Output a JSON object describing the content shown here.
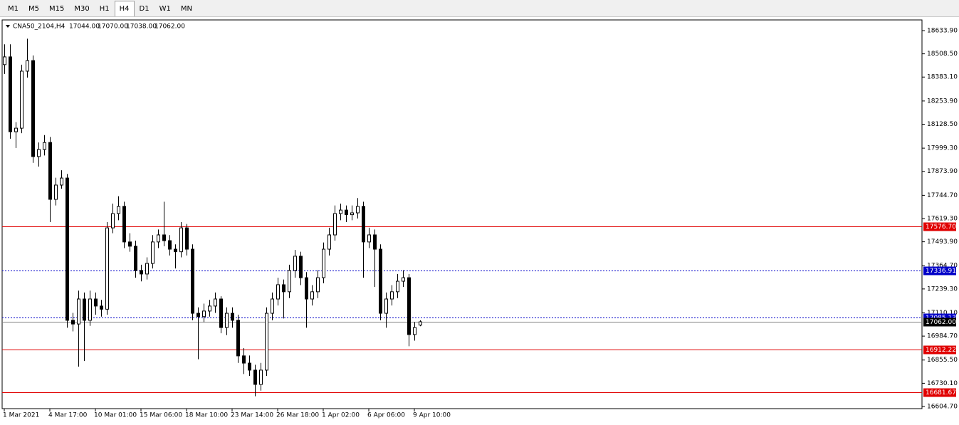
{
  "toolbar": {
    "tabs": [
      "M1",
      "M5",
      "M15",
      "M30",
      "H1",
      "H4",
      "D1",
      "W1",
      "MN"
    ],
    "active": "H4"
  },
  "chart_data": {
    "type": "candlestick",
    "symbol": "CNA50_2104,H4",
    "header_ohlc": [
      "17044.00",
      "17070.00",
      "17038.00",
      "17062.00"
    ],
    "ylim": [
      16593.2,
      18691.5
    ],
    "yticks": [
      {
        "value": 18633.9,
        "label": "18633.90"
      },
      {
        "value": 18508.5,
        "label": "18508.50"
      },
      {
        "value": 18383.1,
        "label": "18383.10"
      },
      {
        "value": 18253.9,
        "label": "18253.90"
      },
      {
        "value": 18128.5,
        "label": "18128.50"
      },
      {
        "value": 17999.3,
        "label": "17999.30"
      },
      {
        "value": 17873.9,
        "label": "17873.90"
      },
      {
        "value": 17744.7,
        "label": "17744.70"
      },
      {
        "value": 17619.3,
        "label": "17619.30"
      },
      {
        "value": 17493.9,
        "label": "17493.90"
      },
      {
        "value": 17364.7,
        "label": "17364.70"
      },
      {
        "value": 17239.3,
        "label": "17239.30"
      },
      {
        "value": 17110.1,
        "label": "17110.10"
      },
      {
        "value": 16984.7,
        "label": "16984.70"
      },
      {
        "value": 16855.5,
        "label": "16855.50"
      },
      {
        "value": 16730.1,
        "label": "16730.10"
      },
      {
        "value": 16604.7,
        "label": "16604.70"
      }
    ],
    "categories": [
      "1 Mar 2021",
      null,
      null,
      null,
      null,
      null,
      null,
      null,
      "4 Mar 17:00",
      null,
      null,
      null,
      null,
      null,
      null,
      null,
      "10 Mar 01:00",
      null,
      null,
      null,
      null,
      null,
      null,
      null,
      "15 Mar 06:00",
      null,
      null,
      null,
      null,
      null,
      null,
      null,
      "18 Mar 10:00",
      null,
      null,
      null,
      null,
      null,
      null,
      null,
      "23 Mar 14:00",
      null,
      null,
      null,
      null,
      null,
      null,
      null,
      "26 Mar 18:00",
      null,
      null,
      null,
      null,
      null,
      null,
      null,
      "1 Apr 02:00",
      null,
      null,
      null,
      null,
      null,
      null,
      null,
      "6 Apr 06:00",
      null,
      null,
      null,
      null,
      null,
      null,
      null,
      "9 Apr 10:00",
      null
    ],
    "ohlc": [
      [
        18450,
        18560,
        18400,
        18492
      ],
      [
        18492,
        18560,
        18050,
        18088
      ],
      [
        18088,
        18140,
        18000,
        18107
      ],
      [
        18107,
        18450,
        18080,
        18415
      ],
      [
        18415,
        18590,
        18380,
        18472
      ],
      [
        18472,
        18500,
        17920,
        17954
      ],
      [
        17954,
        18030,
        17900,
        17992
      ],
      [
        17992,
        18070,
        17960,
        18030
      ],
      [
        18030,
        18060,
        17600,
        17723
      ],
      [
        17723,
        17840,
        17690,
        17800
      ],
      [
        17800,
        17880,
        17780,
        17838
      ],
      [
        17838,
        17860,
        17030,
        17070
      ],
      [
        17070,
        17110,
        17010,
        17050
      ],
      [
        17050,
        17230,
        16820,
        17185
      ],
      [
        17185,
        17220,
        16850,
        17070
      ],
      [
        17070,
        17230,
        17040,
        17185
      ],
      [
        17185,
        17220,
        17100,
        17147
      ],
      [
        17147,
        17180,
        17090,
        17130
      ],
      [
        17130,
        17600,
        17100,
        17569
      ],
      [
        17569,
        17700,
        17540,
        17646
      ],
      [
        17646,
        17740,
        17610,
        17685
      ],
      [
        17685,
        17710,
        17460,
        17493
      ],
      [
        17493,
        17540,
        17440,
        17470
      ],
      [
        17470,
        17500,
        17300,
        17339
      ],
      [
        17339,
        17370,
        17280,
        17320
      ],
      [
        17320,
        17410,
        17290,
        17377
      ],
      [
        17377,
        17530,
        17350,
        17493
      ],
      [
        17493,
        17560,
        17460,
        17531
      ],
      [
        17531,
        17710,
        17470,
        17500
      ],
      [
        17500,
        17530,
        17420,
        17454
      ],
      [
        17454,
        17480,
        17350,
        17440
      ],
      [
        17440,
        17600,
        17410,
        17569
      ],
      [
        17569,
        17590,
        17420,
        17454
      ],
      [
        17454,
        17480,
        17070,
        17108
      ],
      [
        17108,
        17140,
        16860,
        17090
      ],
      [
        17090,
        17160,
        17060,
        17120
      ],
      [
        17120,
        17180,
        17090,
        17147
      ],
      [
        17147,
        17220,
        17110,
        17185
      ],
      [
        17185,
        17200,
        17000,
        17031
      ],
      [
        17031,
        17140,
        16990,
        17108
      ],
      [
        17108,
        17140,
        17030,
        17070
      ],
      [
        17070,
        17100,
        16840,
        16878
      ],
      [
        16878,
        16920,
        16780,
        16839
      ],
      [
        16839,
        16880,
        16770,
        16801
      ],
      [
        16801,
        16830,
        16660,
        16724
      ],
      [
        16724,
        16840,
        16690,
        16801
      ],
      [
        16801,
        17140,
        16770,
        17108
      ],
      [
        17108,
        17220,
        17070,
        17185
      ],
      [
        17185,
        17300,
        17150,
        17262
      ],
      [
        17262,
        17290,
        17080,
        17224
      ],
      [
        17224,
        17370,
        17190,
        17339
      ],
      [
        17339,
        17450,
        17300,
        17416
      ],
      [
        17416,
        17440,
        17260,
        17300
      ],
      [
        17300,
        17330,
        17030,
        17185
      ],
      [
        17185,
        17260,
        17150,
        17224
      ],
      [
        17224,
        17340,
        17190,
        17300
      ],
      [
        17300,
        17490,
        17270,
        17454
      ],
      [
        17454,
        17570,
        17420,
        17531
      ],
      [
        17531,
        17690,
        17500,
        17646
      ],
      [
        17646,
        17700,
        17610,
        17665
      ],
      [
        17665,
        17690,
        17600,
        17640
      ],
      [
        17640,
        17690,
        17610,
        17650
      ],
      [
        17650,
        17730,
        17620,
        17685
      ],
      [
        17685,
        17710,
        17300,
        17493
      ],
      [
        17493,
        17570,
        17460,
        17531
      ],
      [
        17531,
        17560,
        17250,
        17454
      ],
      [
        17454,
        17480,
        17070,
        17108
      ],
      [
        17108,
        17220,
        17030,
        17185
      ],
      [
        17185,
        17260,
        17150,
        17224
      ],
      [
        17224,
        17320,
        17190,
        17281
      ],
      [
        17281,
        17340,
        17250,
        17300
      ],
      [
        17300,
        17320,
        16930,
        16993
      ],
      [
        16993,
        17060,
        16960,
        17031
      ],
      [
        17044,
        17070,
        17038,
        17062
      ]
    ],
    "levels": [
      {
        "value": 17576.7,
        "label": "17576.70",
        "color": "#e00000",
        "style": "solid"
      },
      {
        "value": 17336.91,
        "label": "17336.91",
        "color": "#0000c8",
        "style": "dotted"
      },
      {
        "value": 17085.13,
        "label": "17085.13",
        "color": "#0000c8",
        "style": "dotted"
      },
      {
        "value": 17062.0,
        "label": "17062.00",
        "color": "#808080",
        "style": "solid",
        "label_color": "#000000"
      },
      {
        "value": 16912.22,
        "label": "16912.22",
        "color": "#e00000",
        "style": "solid"
      },
      {
        "value": 16681.67,
        "label": "16681.67",
        "color": "#e00000",
        "style": "solid"
      }
    ]
  }
}
